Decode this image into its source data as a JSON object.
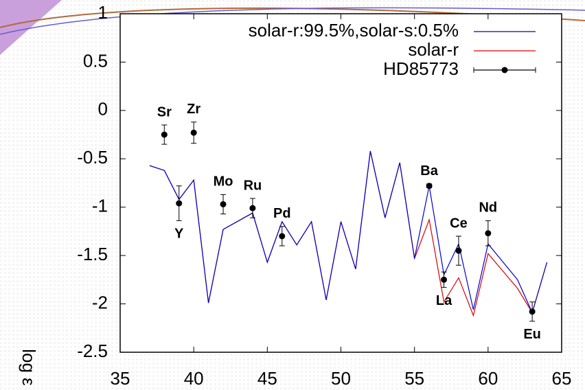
{
  "chart_data": {
    "type": "line",
    "ylabel": "log ε",
    "xlim": [
      35,
      65
    ],
    "xticks": [
      35,
      40,
      45,
      50,
      55,
      60,
      65
    ],
    "ylim": [
      -2.5,
      1
    ],
    "yticks": [
      -2.5,
      -2,
      -1.5,
      -1,
      -0.5,
      0,
      0.5,
      1
    ],
    "legend": "top-right",
    "series": [
      {
        "name": "solar-r:99.5%,solar-s:0.5%",
        "color": "#0000cc",
        "kind": "line",
        "x": [
          37,
          38,
          39,
          40,
          41,
          42,
          44,
          45,
          46,
          47,
          48,
          49,
          50,
          51,
          52,
          53,
          54,
          55,
          56,
          57,
          58,
          59,
          60,
          62,
          63,
          64
        ],
        "values": [
          -0.57,
          -0.62,
          -0.92,
          -0.72,
          -1.99,
          -1.23,
          -1.06,
          -1.57,
          -1.15,
          -1.39,
          -1.15,
          -1.96,
          -1.15,
          -1.64,
          -0.42,
          -1.11,
          -0.54,
          -1.53,
          -0.78,
          -1.7,
          -1.38,
          -2.06,
          -1.38,
          -1.75,
          -2.09,
          -1.57
        ]
      },
      {
        "name": "solar-r",
        "color": "#dd0000",
        "kind": "line",
        "x": [
          37,
          38,
          39,
          40,
          41,
          42,
          44,
          45,
          46,
          47,
          48,
          49,
          50,
          51,
          52,
          53,
          54,
          55,
          56,
          57,
          58,
          59,
          60,
          62,
          63,
          64
        ],
        "values": [
          -0.57,
          -0.62,
          -0.92,
          -0.72,
          -1.99,
          -1.23,
          -1.06,
          -1.57,
          -1.15,
          -1.39,
          -1.15,
          -1.96,
          -1.15,
          -1.64,
          -0.42,
          -1.11,
          -0.54,
          -1.53,
          -1.13,
          -1.98,
          -1.73,
          -2.12,
          -1.48,
          -1.84,
          -2.09,
          -1.57
        ]
      },
      {
        "name": "HD85773",
        "color": "#000000",
        "kind": "points",
        "x": [
          38,
          39,
          40,
          42,
          44,
          46,
          56,
          57,
          58,
          60,
          63
        ],
        "values": [
          -0.25,
          -0.96,
          -0.23,
          -0.97,
          -1.01,
          -1.3,
          -0.78,
          -1.75,
          -1.45,
          -1.27,
          -2.08
        ],
        "errors": [
          0.1,
          0.18,
          0.11,
          0.1,
          0.1,
          0.1,
          0.02,
          0.08,
          0.15,
          0.13,
          0.1
        ],
        "labels": [
          "Sr",
          "Y",
          "Zr",
          "Mo",
          "Ru",
          "Pd",
          "Ba",
          "La",
          "Ce",
          "Nd",
          "Eu"
        ]
      }
    ]
  }
}
